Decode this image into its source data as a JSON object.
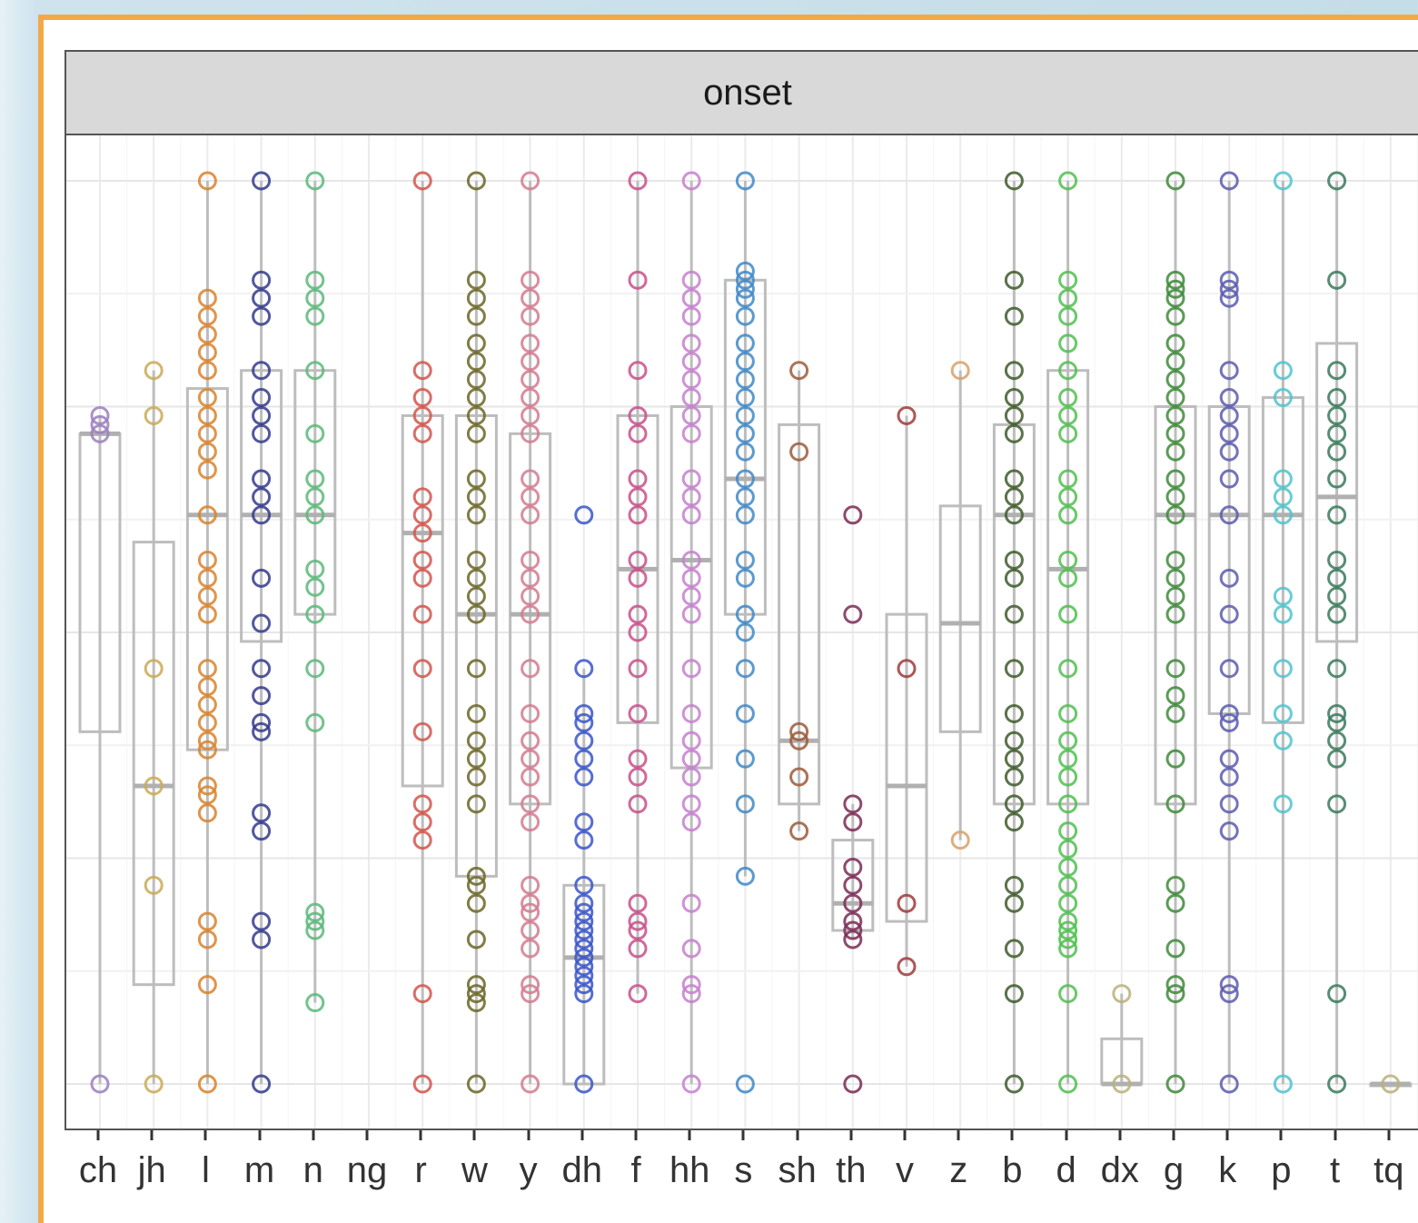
{
  "chart_data": {
    "type": "boxplot",
    "panel_title": "onset",
    "xlabel": "",
    "ylabel": "",
    "ylim": [
      0,
      1
    ],
    "grid": true,
    "legend": "none",
    "categories": [
      "ch",
      "jh",
      "l",
      "m",
      "n",
      "ng",
      "r",
      "w",
      "y",
      "dh",
      "f",
      "hh",
      "s",
      "sh",
      "th",
      "v",
      "z",
      "b",
      "d",
      "dx",
      "g",
      "k",
      "p",
      "t",
      "tq"
    ],
    "colors": {
      "ch": "#9b7fc0",
      "jh": "#c9aa55",
      "l": "#d9822b",
      "m": "#333a8c",
      "n": "#5ab97a",
      "ng": "#888888",
      "r": "#d4534b",
      "w": "#6b6626",
      "y": "#d37a8e",
      "dh": "#3a55c8",
      "f": "#c94f8a",
      "hh": "#c77fcf",
      "s": "#3f88c8",
      "sh": "#9c5a3a",
      "th": "#7a2a55",
      "v": "#a03a3a",
      "z": "#d9a06a",
      "b": "#3e5a2a",
      "d": "#4fbf4f",
      "dx": "#b9b27a",
      "g": "#3e8a3a",
      "k": "#5a5ab0",
      "p": "#4ec4cc",
      "t": "#3a7a5a",
      "tq": "#b9b27a"
    },
    "boxes": [
      {
        "cat": "ch",
        "q1": 0.39,
        "median": 0.72,
        "q3": 0.72,
        "lo": 0.0,
        "hi": 0.74,
        "points": [
          0.0,
          0.72,
          0.73,
          0.74
        ]
      },
      {
        "cat": "jh",
        "q1": 0.11,
        "median": 0.33,
        "q3": 0.6,
        "lo": 0.0,
        "hi": 0.79,
        "points": [
          0.0,
          0.22,
          0.33,
          0.46,
          0.74,
          0.79
        ]
      },
      {
        "cat": "l",
        "q1": 0.37,
        "median": 0.63,
        "q3": 0.77,
        "lo": 0.0,
        "hi": 1.0,
        "points": [
          0.0,
          0.11,
          0.16,
          0.18,
          0.3,
          0.32,
          0.33,
          0.37,
          0.38,
          0.4,
          0.42,
          0.44,
          0.46,
          0.52,
          0.54,
          0.56,
          0.58,
          0.63,
          0.68,
          0.7,
          0.72,
          0.74,
          0.76,
          0.79,
          0.81,
          0.83,
          0.85,
          0.87,
          1.0
        ]
      },
      {
        "cat": "m",
        "q1": 0.49,
        "median": 0.63,
        "q3": 0.79,
        "lo": 0.0,
        "hi": 1.0,
        "points": [
          0.0,
          0.16,
          0.18,
          0.28,
          0.3,
          0.39,
          0.4,
          0.43,
          0.46,
          0.51,
          0.56,
          0.63,
          0.65,
          0.67,
          0.72,
          0.74,
          0.76,
          0.79,
          0.85,
          0.87,
          0.89,
          1.0
        ]
      },
      {
        "cat": "n",
        "q1": 0.52,
        "median": 0.63,
        "q3": 0.79,
        "lo": 0.09,
        "hi": 1.0,
        "points": [
          0.09,
          0.17,
          0.18,
          0.19,
          0.4,
          0.46,
          0.52,
          0.55,
          0.57,
          0.63,
          0.65,
          0.67,
          0.72,
          0.79,
          0.85,
          0.87,
          0.89,
          1.0
        ]
      },
      {
        "cat": "ng",
        "q1": null,
        "median": null,
        "q3": null,
        "lo": null,
        "hi": null,
        "points": []
      },
      {
        "cat": "r",
        "q1": 0.33,
        "median": 0.61,
        "q3": 0.74,
        "lo": 0.0,
        "hi": 1.0,
        "points": [
          0.0,
          0.1,
          0.27,
          0.29,
          0.31,
          0.39,
          0.46,
          0.52,
          0.56,
          0.58,
          0.61,
          0.63,
          0.65,
          0.72,
          0.74,
          0.76,
          0.79,
          1.0
        ]
      },
      {
        "cat": "w",
        "q1": 0.23,
        "median": 0.52,
        "q3": 0.74,
        "lo": 0.0,
        "hi": 1.0,
        "points": [
          0.0,
          0.09,
          0.1,
          0.11,
          0.16,
          0.2,
          0.22,
          0.23,
          0.31,
          0.34,
          0.36,
          0.38,
          0.41,
          0.46,
          0.52,
          0.54,
          0.56,
          0.58,
          0.63,
          0.65,
          0.67,
          0.72,
          0.74,
          0.76,
          0.78,
          0.8,
          0.82,
          0.85,
          0.87,
          0.89,
          1.0
        ]
      },
      {
        "cat": "y",
        "q1": 0.31,
        "median": 0.52,
        "q3": 0.72,
        "lo": 0.0,
        "hi": 1.0,
        "points": [
          0.0,
          0.1,
          0.11,
          0.15,
          0.17,
          0.19,
          0.2,
          0.22,
          0.29,
          0.31,
          0.34,
          0.36,
          0.38,
          0.41,
          0.46,
          0.52,
          0.54,
          0.56,
          0.58,
          0.63,
          0.65,
          0.67,
          0.72,
          0.74,
          0.76,
          0.78,
          0.8,
          0.82,
          0.85,
          0.87,
          0.89,
          1.0
        ]
      },
      {
        "cat": "dh",
        "q1": 0.0,
        "median": 0.14,
        "q3": 0.22,
        "lo": 0.0,
        "hi": 0.46,
        "points": [
          0.0,
          0.1,
          0.11,
          0.12,
          0.13,
          0.14,
          0.15,
          0.16,
          0.17,
          0.18,
          0.19,
          0.2,
          0.22,
          0.27,
          0.29,
          0.34,
          0.36,
          0.38,
          0.4,
          0.41,
          0.46,
          0.63
        ]
      },
      {
        "cat": "f",
        "q1": 0.4,
        "median": 0.57,
        "q3": 0.74,
        "lo": 0.1,
        "hi": 1.0,
        "points": [
          0.1,
          0.15,
          0.17,
          0.18,
          0.2,
          0.31,
          0.34,
          0.36,
          0.41,
          0.46,
          0.5,
          0.52,
          0.56,
          0.58,
          0.63,
          0.65,
          0.67,
          0.72,
          0.74,
          0.79,
          0.89,
          1.0
        ]
      },
      {
        "cat": "hh",
        "q1": 0.35,
        "median": 0.58,
        "q3": 0.75,
        "lo": 0.0,
        "hi": 1.0,
        "points": [
          0.0,
          0.1,
          0.11,
          0.15,
          0.2,
          0.29,
          0.31,
          0.34,
          0.36,
          0.38,
          0.41,
          0.46,
          0.52,
          0.54,
          0.56,
          0.58,
          0.63,
          0.65,
          0.67,
          0.72,
          0.74,
          0.76,
          0.78,
          0.8,
          0.82,
          0.85,
          0.87,
          0.89,
          1.0
        ]
      },
      {
        "cat": "s",
        "q1": 0.52,
        "median": 0.67,
        "q3": 0.89,
        "lo": 0.23,
        "hi": 1.0,
        "points": [
          0.0,
          0.23,
          0.31,
          0.36,
          0.41,
          0.46,
          0.5,
          0.52,
          0.56,
          0.58,
          0.63,
          0.65,
          0.67,
          0.7,
          0.72,
          0.74,
          0.76,
          0.78,
          0.8,
          0.82,
          0.85,
          0.87,
          0.88,
          0.89,
          0.9,
          1.0
        ]
      },
      {
        "cat": "sh",
        "q1": 0.31,
        "median": 0.38,
        "q3": 0.73,
        "lo": 0.28,
        "hi": 0.79,
        "points": [
          0.28,
          0.34,
          0.38,
          0.39,
          0.7,
          0.79
        ]
      },
      {
        "cat": "th",
        "q1": 0.17,
        "median": 0.2,
        "q3": 0.27,
        "lo": 0.16,
        "hi": 0.31,
        "points": [
          0.0,
          0.16,
          0.17,
          0.18,
          0.2,
          0.22,
          0.24,
          0.29,
          0.31,
          0.52,
          0.63
        ]
      },
      {
        "cat": "v",
        "q1": 0.18,
        "median": 0.33,
        "q3": 0.52,
        "lo": 0.13,
        "hi": 0.74,
        "points": [
          0.13,
          0.2,
          0.46,
          0.74
        ]
      },
      {
        "cat": "z",
        "q1": 0.39,
        "median": 0.51,
        "q3": 0.64,
        "lo": 0.27,
        "hi": 0.79,
        "points": [
          0.27,
          0.79
        ]
      },
      {
        "cat": "b",
        "q1": 0.31,
        "median": 0.63,
        "q3": 0.73,
        "lo": 0.0,
        "hi": 1.0,
        "points": [
          0.0,
          0.1,
          0.15,
          0.2,
          0.22,
          0.29,
          0.31,
          0.34,
          0.36,
          0.38,
          0.41,
          0.46,
          0.52,
          0.56,
          0.58,
          0.63,
          0.65,
          0.67,
          0.72,
          0.74,
          0.76,
          0.79,
          0.85,
          0.89,
          1.0
        ]
      },
      {
        "cat": "d",
        "q1": 0.31,
        "median": 0.57,
        "q3": 0.79,
        "lo": 0.0,
        "hi": 1.0,
        "points": [
          0.0,
          0.1,
          0.15,
          0.16,
          0.17,
          0.18,
          0.2,
          0.22,
          0.24,
          0.26,
          0.28,
          0.31,
          0.34,
          0.36,
          0.38,
          0.41,
          0.46,
          0.52,
          0.56,
          0.58,
          0.63,
          0.65,
          0.67,
          0.72,
          0.74,
          0.76,
          0.79,
          0.82,
          0.85,
          0.87,
          0.89,
          1.0
        ]
      },
      {
        "cat": "dx",
        "q1": 0.0,
        "median": 0.0,
        "q3": 0.05,
        "lo": 0.0,
        "hi": 0.1,
        "points": [
          0.0,
          0.1
        ]
      },
      {
        "cat": "g",
        "q1": 0.31,
        "median": 0.63,
        "q3": 0.75,
        "lo": 0.0,
        "hi": 1.0,
        "points": [
          0.0,
          0.1,
          0.11,
          0.15,
          0.2,
          0.22,
          0.31,
          0.36,
          0.41,
          0.43,
          0.46,
          0.52,
          0.54,
          0.56,
          0.58,
          0.63,
          0.65,
          0.67,
          0.7,
          0.72,
          0.74,
          0.76,
          0.78,
          0.8,
          0.82,
          0.85,
          0.87,
          0.88,
          0.89,
          1.0
        ]
      },
      {
        "cat": "k",
        "q1": 0.41,
        "median": 0.63,
        "q3": 0.75,
        "lo": 0.0,
        "hi": 1.0,
        "points": [
          0.0,
          0.1,
          0.11,
          0.28,
          0.31,
          0.34,
          0.36,
          0.4,
          0.41,
          0.46,
          0.52,
          0.56,
          0.63,
          0.67,
          0.7,
          0.72,
          0.74,
          0.76,
          0.79,
          0.87,
          0.88,
          0.89,
          1.0
        ]
      },
      {
        "cat": "p",
        "q1": 0.4,
        "median": 0.63,
        "q3": 0.76,
        "lo": 0.0,
        "hi": 1.0,
        "points": [
          0.0,
          0.31,
          0.38,
          0.41,
          0.46,
          0.52,
          0.54,
          0.63,
          0.65,
          0.67,
          0.76,
          0.79,
          1.0
        ]
      },
      {
        "cat": "t",
        "q1": 0.49,
        "median": 0.65,
        "q3": 0.82,
        "lo": 0.0,
        "hi": 1.0,
        "points": [
          0.0,
          0.1,
          0.31,
          0.36,
          0.38,
          0.4,
          0.41,
          0.46,
          0.52,
          0.54,
          0.56,
          0.58,
          0.63,
          0.67,
          0.7,
          0.72,
          0.74,
          0.76,
          0.79,
          0.89,
          1.0
        ]
      },
      {
        "cat": "tq",
        "q1": 0.0,
        "median": 0.0,
        "q3": 0.0,
        "lo": 0.0,
        "hi": 0.0,
        "points": [
          0.0
        ]
      }
    ]
  }
}
